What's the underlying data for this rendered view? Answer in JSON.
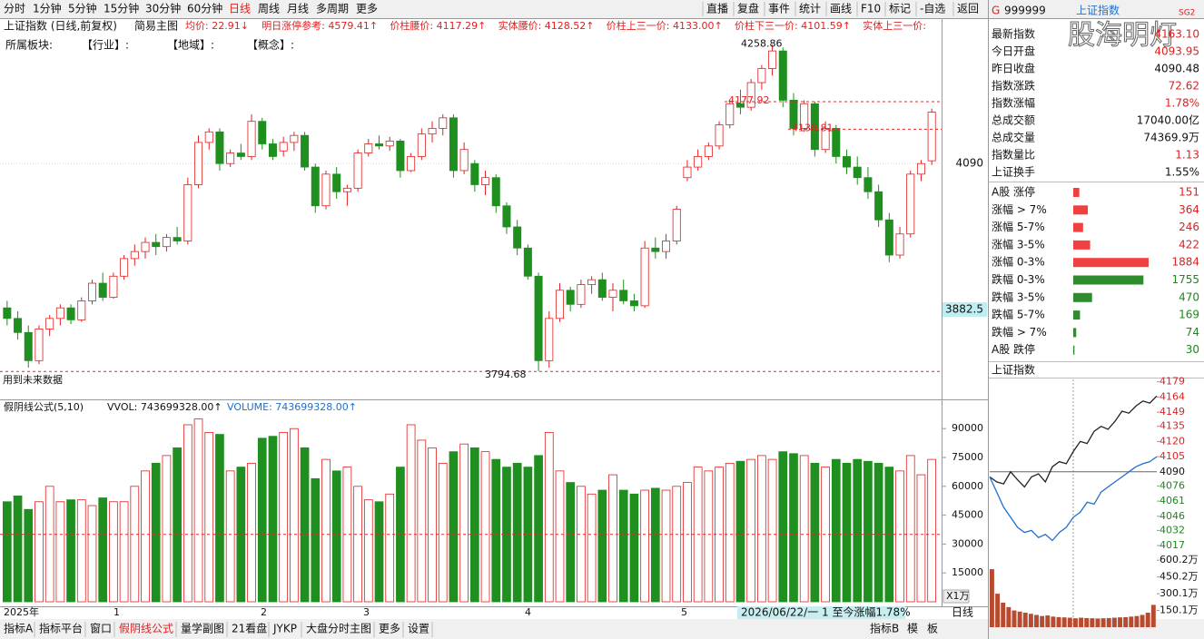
{
  "toolbar": {
    "left": [
      "分时",
      "1分钟",
      "5分钟",
      "15分钟",
      "30分钟",
      "60分钟",
      "日线",
      "周线",
      "月线",
      "多周期",
      "更多"
    ],
    "active": "日线",
    "right": [
      "直播",
      "复盘",
      "事件",
      "统计",
      "画线",
      "F10",
      "标记",
      "-自选",
      "返回"
    ]
  },
  "info_bar": {
    "title": "上证指数 (日线,前复权)",
    "mode": "简易主图",
    "items": [
      "均价: 22.91↓",
      "明日涨停参考: 4579.41↑",
      "价柱腰价: 4117.29↑",
      "实体腰价: 4128.52↑",
      "价柱上三一价: 4133.00↑",
      "价柱下三一价: 4101.59↑",
      "实体上三一价:"
    ]
  },
  "sector_bar": [
    "所属板块:",
    "【行业】:",
    "【地域】:",
    "【概念】:"
  ],
  "chart_data": [
    {
      "type": "candlestick",
      "title": "上证指数",
      "candles": [
        [
          3885,
          3895,
          3860,
          3870
        ],
        [
          3870,
          3880,
          3840,
          3850
        ],
        [
          3850,
          3860,
          3800,
          3810
        ],
        [
          3810,
          3860,
          3805,
          3855
        ],
        [
          3855,
          3875,
          3845,
          3870
        ],
        [
          3870,
          3890,
          3860,
          3885
        ],
        [
          3885,
          3890,
          3862,
          3868
        ],
        [
          3868,
          3900,
          3865,
          3895
        ],
        [
          3895,
          3925,
          3890,
          3920
        ],
        [
          3920,
          3935,
          3895,
          3900
        ],
        [
          3900,
          3935,
          3898,
          3930
        ],
        [
          3930,
          3960,
          3925,
          3955
        ],
        [
          3955,
          3975,
          3945,
          3965
        ],
        [
          3965,
          3985,
          3955,
          3978
        ],
        [
          3978,
          3990,
          3960,
          3972
        ],
        [
          3972,
          3990,
          3965,
          3985
        ],
        [
          3985,
          4000,
          3975,
          3980
        ],
        [
          3980,
          4070,
          3975,
          4060
        ],
        [
          4060,
          4130,
          4055,
          4120
        ],
        [
          4120,
          4140,
          4110,
          4135
        ],
        [
          4135,
          4140,
          4080,
          4090
        ],
        [
          4090,
          4110,
          4085,
          4105
        ],
        [
          4105,
          4118,
          4095,
          4100
        ],
        [
          4100,
          4160,
          4095,
          4150
        ],
        [
          4150,
          4155,
          4110,
          4118
        ],
        [
          4118,
          4125,
          4095,
          4100
        ],
        [
          4108,
          4128,
          4100,
          4120
        ],
        [
          4120,
          4135,
          4108,
          4130
        ],
        [
          4130,
          4135,
          4080,
          4085
        ],
        [
          4085,
          4090,
          4020,
          4030
        ],
        [
          4030,
          4080,
          4025,
          4075
        ],
        [
          4075,
          4085,
          4040,
          4050
        ],
        [
          4050,
          4060,
          4030,
          4055
        ],
        [
          4055,
          4110,
          4050,
          4105
        ],
        [
          4105,
          4125,
          4100,
          4118
        ],
        [
          4118,
          4130,
          4110,
          4115
        ],
        [
          4115,
          4128,
          4108,
          4122
        ],
        [
          4122,
          4125,
          4070,
          4080
        ],
        [
          4080,
          4105,
          4078,
          4100
        ],
        [
          4100,
          4140,
          4095,
          4132
        ],
        [
          4132,
          4150,
          4120,
          4140
        ],
        [
          4140,
          4160,
          4130,
          4155
        ],
        [
          4155,
          4160,
          4070,
          4080
        ],
        [
          4080,
          4120,
          4075,
          4110
        ],
        [
          4090,
          4095,
          4050,
          4060
        ],
        [
          4060,
          4080,
          4045,
          4070
        ],
        [
          4070,
          4075,
          4020,
          4030
        ],
        [
          4030,
          4035,
          3990,
          4000
        ],
        [
          4000,
          4010,
          3960,
          3970
        ],
        [
          3970,
          3975,
          3925,
          3930
        ],
        [
          3930,
          3935,
          3795,
          3810
        ],
        [
          3810,
          3880,
          3800,
          3870
        ],
        [
          3870,
          3920,
          3865,
          3910
        ],
        [
          3910,
          3915,
          3880,
          3890
        ],
        [
          3890,
          3925,
          3885,
          3918
        ],
        [
          3918,
          3930,
          3905,
          3925
        ],
        [
          3925,
          3935,
          3895,
          3900
        ],
        [
          3900,
          3920,
          3880,
          3910
        ],
        [
          3910,
          3925,
          3890,
          3895
        ],
        [
          3895,
          3905,
          3880,
          3888
        ],
        [
          3888,
          3980,
          3885,
          3970
        ],
        [
          3970,
          3985,
          3955,
          3965
        ],
        [
          3965,
          3990,
          3955,
          3980
        ],
        [
          3980,
          4030,
          3975,
          4025
        ],
        [
          4070,
          4095,
          4065,
          4085
        ],
        [
          4085,
          4110,
          4080,
          4100
        ],
        [
          4100,
          4120,
          4095,
          4115
        ],
        [
          4115,
          4150,
          4110,
          4145
        ],
        [
          4145,
          4180,
          4140,
          4175
        ],
        [
          4175,
          4195,
          4160,
          4170
        ],
        [
          4170,
          4210,
          4165,
          4205
        ],
        [
          4205,
          4230,
          4195,
          4225
        ],
        [
          4225,
          4259,
          4215,
          4250
        ],
        [
          4250,
          4255,
          4170,
          4180
        ],
        [
          4180,
          4190,
          4130,
          4140
        ],
        [
          4140,
          4180,
          4135,
          4175
        ],
        [
          4175,
          4178,
          4100,
          4110
        ],
        [
          4110,
          4150,
          4105,
          4140
        ],
        [
          4140,
          4145,
          4090,
          4100
        ],
        [
          4100,
          4110,
          4075,
          4085
        ],
        [
          4085,
          4100,
          4060,
          4070
        ],
        [
          4070,
          4085,
          4040,
          4050
        ],
        [
          4050,
          4060,
          4000,
          4010
        ],
        [
          4010,
          4020,
          3950,
          3960
        ],
        [
          3960,
          4000,
          3955,
          3990
        ],
        [
          3990,
          4080,
          3985,
          4075
        ],
        [
          4075,
          4095,
          4065,
          4090
        ],
        [
          4093.95,
          4168,
          4088,
          4163.1
        ]
      ],
      "ylim": [
        3755,
        4294
      ],
      "yticks": [
        4090
      ],
      "price_marker": 3882.5,
      "levels": [
        4258.86,
        4177.92,
        4138.81,
        3794.68
      ],
      "note": "用到未来数据",
      "x_labels": [
        "2025年",
        "1",
        "2",
        "3",
        "4",
        "5"
      ],
      "up_color": "#e02020",
      "down_color": "#1f8f1f",
      "fake_up_color": "#f2d21c",
      "fake_down_color": "#ff00ff"
    },
    {
      "type": "bar",
      "title": "假阴线公式(5,10)",
      "items": [
        "VVOL: 743699328.00↑",
        "VOLUME: 743699328.00↑"
      ],
      "values": [
        52000,
        55000,
        48000,
        52000,
        60000,
        52000,
        53000,
        53000,
        50000,
        54000,
        52000,
        52000,
        60000,
        68000,
        72000,
        76000,
        80000,
        92000,
        95000,
        88000,
        87000,
        68000,
        70000,
        72000,
        85000,
        86000,
        88000,
        90000,
        80000,
        64000,
        74000,
        68000,
        70000,
        60000,
        53000,
        52000,
        56000,
        70000,
        92000,
        84000,
        80000,
        72000,
        78000,
        82000,
        80000,
        78000,
        74000,
        70000,
        72000,
        70000,
        76000,
        88000,
        68000,
        62000,
        60000,
        56000,
        58000,
        66000,
        58000,
        56000,
        58000,
        59000,
        58000,
        60000,
        62000,
        70000,
        68000,
        70000,
        72000,
        73000,
        74000,
        76000,
        74000,
        78000,
        77000,
        76000,
        72000,
        70000,
        74000,
        72000,
        74000,
        73000,
        72000,
        70000,
        68000,
        76000,
        66000,
        74000
      ],
      "ylim": [
        0,
        96700
      ],
      "yticks": [
        15000,
        30000,
        45000,
        60000,
        75000,
        90000
      ],
      "reference_line": 35000,
      "unit_label": "X1万"
    },
    {
      "type": "line",
      "title": "上证指数",
      "series": [
        {
          "color": "#222222",
          "values": [
            4085,
            4080,
            4078,
            4090,
            4082,
            4075,
            4085,
            4088,
            4080,
            4095,
            4100,
            4098,
            4110,
            4120,
            4118,
            4130,
            4135,
            4132,
            4140,
            4150,
            4148,
            4155,
            4160,
            4158,
            4165
          ]
        },
        {
          "color": "#1e6fd0",
          "values": [
            4085,
            4070,
            4055,
            4045,
            4035,
            4030,
            4032,
            4025,
            4028,
            4022,
            4030,
            4035,
            4045,
            4050,
            4060,
            4058,
            4070,
            4075,
            4080,
            4085,
            4090,
            4095,
            4098,
            4100,
            4105
          ]
        }
      ],
      "ylim": [
        4000,
        4185
      ],
      "yticks": [
        4179,
        4164,
        4149,
        4135,
        4120,
        4105,
        4090,
        4076,
        4061,
        4046,
        4032,
        4017
      ]
    },
    {
      "type": "bar",
      "values": [
        520,
        300,
        220,
        180,
        150,
        140,
        130,
        120,
        110,
        100,
        105,
        95,
        90,
        88,
        85,
        80,
        85,
        82,
        80,
        78,
        80,
        82,
        85,
        88,
        90,
        95,
        100,
        110,
        130,
        200
      ],
      "color": "#b84a30",
      "ylim": [
        0,
        675
      ],
      "yticks": [
        {
          "value": 600.2,
          "label": "600.2万"
        },
        {
          "value": 450.2,
          "label": "450.2万"
        },
        {
          "value": 300.1,
          "label": "300.1万"
        },
        {
          "value": 150.1,
          "label": "150.1万"
        }
      ]
    }
  ],
  "quote": {
    "code_prefix": "G",
    "code": "999999",
    "name": "上证指数",
    "tag": "SG2",
    "watermark": "股海明灯",
    "rows": [
      {
        "label": "最新指数",
        "value": "4163.10",
        "color": "#e02020"
      },
      {
        "label": "今日开盘",
        "value": "4093.95",
        "color": "#e02020"
      },
      {
        "label": "昨日收盘",
        "value": "4090.48",
        "color": "#111111"
      },
      {
        "label": "指数涨跌",
        "value": "72.62",
        "color": "#e02020"
      },
      {
        "label": "指数涨幅",
        "value": "1.78%",
        "color": "#e02020"
      },
      {
        "label": "总成交额",
        "value": "17040.00亿",
        "color": "#111111"
      },
      {
        "label": "总成交量",
        "value": "74369.9万",
        "color": "#111111"
      },
      {
        "label": "指数量比",
        "value": "1.13",
        "color": "#e02020"
      },
      {
        "label": "上证换手",
        "value": "1.55%",
        "color": "#111111"
      }
    ]
  },
  "breadth": {
    "up_color": "#f04040",
    "down_color": "#2e8b2e",
    "up": [
      {
        "label": "A股 涨停",
        "count": 151
      },
      {
        "label": "涨幅 > 7%",
        "count": 364
      },
      {
        "label": "涨幅 5-7%",
        "count": 246
      },
      {
        "label": "涨幅 3-5%",
        "count": 422
      },
      {
        "label": "涨幅 0-3%",
        "count": 1884
      }
    ],
    "down": [
      {
        "label": "跌幅 0-3%",
        "count": 1755
      },
      {
        "label": "跌幅 3-5%",
        "count": 470
      },
      {
        "label": "跌幅 5-7%",
        "count": 169
      },
      {
        "label": "跌幅 > 7%",
        "count": 74
      },
      {
        "label": "A股 跌停",
        "count": 30
      }
    ]
  },
  "status": "2026/06/22/一 1 至今涨幅1.78%",
  "period_label": "日线",
  "bottom_tabs": {
    "left": [
      "指标A",
      "指标平台",
      "窗口",
      "假阴线公式",
      "量学副图",
      "21看盘",
      "JYKP",
      "大盘分时主图",
      "更多",
      "设置"
    ],
    "active": "假阴线公式",
    "right": [
      "指标B",
      "模",
      "板"
    ]
  }
}
